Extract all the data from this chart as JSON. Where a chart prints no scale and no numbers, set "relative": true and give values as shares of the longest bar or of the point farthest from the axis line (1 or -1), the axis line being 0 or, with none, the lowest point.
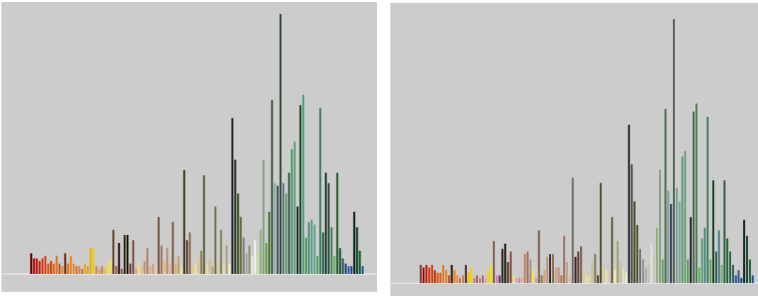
{
  "chart_data": [
    {
      "type": "bar",
      "relative": true,
      "categories": [
        null,
        null,
        null,
        null,
        null,
        null,
        null,
        null,
        null,
        null,
        null,
        null,
        null,
        null,
        null,
        null,
        null,
        null,
        null,
        null,
        null,
        null,
        null,
        null,
        null,
        null,
        null,
        null,
        null,
        null,
        null,
        null,
        null,
        null,
        null,
        null,
        null,
        null,
        null,
        null,
        null,
        null,
        null,
        null,
        null,
        null,
        null,
        null,
        null,
        null,
        null,
        null,
        null,
        null,
        null,
        null,
        null,
        null,
        null,
        null,
        null,
        null,
        null,
        null,
        null,
        null,
        null,
        null,
        null,
        null,
        null,
        null,
        null,
        null,
        null,
        null,
        null,
        null,
        null,
        null,
        null,
        null,
        null,
        null,
        null,
        null,
        null,
        null,
        null,
        null,
        null,
        null,
        null,
        null,
        null,
        null,
        null,
        null,
        null,
        null,
        null,
        null,
        null,
        null,
        null,
        null,
        null,
        null,
        null,
        null,
        null,
        null,
        null,
        null,
        null,
        null,
        null,
        null
      ],
      "values": [
        0.08,
        0.06,
        0.06,
        0.05,
        0.06,
        0.07,
        0.04,
        0.05,
        0.04,
        0.07,
        0.04,
        0.03,
        0.08,
        0.04,
        0.07,
        0.04,
        0.03,
        0.03,
        0.02,
        0.04,
        0.03,
        0.1,
        0.1,
        0.03,
        0.02,
        0.03,
        0.02,
        0.04,
        0.06,
        0.17,
        0.03,
        0.12,
        0.02,
        0.15,
        0.15,
        0.04,
        0.13,
        0.02,
        0.04,
        0.03,
        0.05,
        0.1,
        0.03,
        0.04,
        0.02,
        0.22,
        0.11,
        0.05,
        0.1,
        0.04,
        0.2,
        0.04,
        0.07,
        0.03,
        0.4,
        0.13,
        0.16,
        0.03,
        0.04,
        0.06,
        0.09,
        0.38,
        0.04,
        0.06,
        0.03,
        0.26,
        0.05,
        0.17,
        0.04,
        0.11,
        0.04,
        0.6,
        0.44,
        0.31,
        0.22,
        0.14,
        0.08,
        0.11,
        0.07,
        0.13,
        0.09,
        0.17,
        0.44,
        0.12,
        0.24,
        0.67,
        0.35,
        0.34,
        1.0,
        0.35,
        0.31,
        0.39,
        0.48,
        0.51,
        0.26,
        0.65,
        0.69,
        0.14,
        0.2,
        0.21,
        0.19,
        0.07,
        0.64,
        0.16,
        0.39,
        0.35,
        0.18,
        0.07,
        0.39,
        0.1,
        0.06,
        0.04,
        0.03,
        0.03,
        0.24,
        0.18,
        0.09,
        0.03
      ],
      "colors": [
        "#5a0000",
        "#b00000",
        "#c01010",
        "#c02000",
        "#d03010",
        "#d84010",
        "#e05010",
        "#c04010",
        "#e06010",
        "#e07010",
        "#c05020",
        "#e08030",
        "#603010",
        "#e07020",
        "#f08020",
        "#e09030",
        "#d07030",
        "#e08040",
        "#c07040",
        "#f0a020",
        "#e0a040",
        "#e8b000",
        "#f0d000",
        "#c09050",
        "#e0a060",
        "#d08060",
        "#e0c040",
        "#f0e020",
        "#f0e060",
        "#604020",
        "#a06040",
        "#301020",
        "#806060",
        "#302010",
        "#101000",
        "#604030",
        "#805040",
        "#e0a080",
        "#f0e070",
        "#e0c090",
        "#c09070",
        "#b08060",
        "#e0b080",
        "#d0a080",
        "#f0d090",
        "#705040",
        "#a07060",
        "#e0c070",
        "#c09070",
        "#e0b090",
        "#806050",
        "#d0b070",
        "#c0a060",
        "#f0e090",
        "#404020",
        "#604040",
        "#907050",
        "#e0d080",
        "#f0e0a0",
        "#e0c0a0",
        "#908050",
        "#606040",
        "#e0e0a0",
        "#d0c090",
        "#b0a070",
        "#707050",
        "#d0d0a0",
        "#808060",
        "#e0e0b0",
        "#b0a080",
        "#f0f0c0",
        "#202020",
        "#303030",
        "#305010",
        "#607040",
        "#808080",
        "#a0a0a0",
        "#909060",
        "#e4e4e4",
        "#f0f0f0",
        "#c0e0a0",
        "#90b080",
        "#80a080",
        "#60a040",
        "#507030",
        "#406040",
        "#90b0b0",
        "#405050",
        "#304830",
        "#607090",
        "#60a060",
        "#406060",
        "#50a060",
        "#60a080",
        "#202030",
        "#204020",
        "#50a080",
        "#50a050",
        "#509090",
        "#60a080",
        "#60a090",
        "#50a050",
        "#408060",
        "#306050",
        "#204030",
        "#305040",
        "#408060",
        "#60b060",
        "#206030",
        "#205040",
        "#306050",
        "#204080",
        "#3050a0",
        "#2040a0",
        "#102020",
        "#104020",
        "#106030",
        "#2050a0"
      ]
    },
    {
      "type": "bar",
      "relative": true,
      "categories": [
        null,
        null,
        null,
        null,
        null,
        null,
        null,
        null,
        null,
        null,
        null,
        null,
        null,
        null,
        null,
        null,
        null,
        null,
        null,
        null,
        null,
        null,
        null,
        null,
        null,
        null,
        null,
        null,
        null,
        null,
        null,
        null,
        null,
        null,
        null,
        null,
        null,
        null,
        null,
        null,
        null,
        null,
        null,
        null,
        null,
        null,
        null,
        null,
        null,
        null,
        null,
        null,
        null,
        null,
        null,
        null,
        null,
        null,
        null,
        null,
        null,
        null,
        null,
        null,
        null,
        null,
        null,
        null,
        null,
        null,
        null,
        null,
        null,
        null,
        null,
        null,
        null,
        null,
        null,
        null,
        null,
        null,
        null,
        null,
        null,
        null,
        null,
        null,
        null,
        null,
        null,
        null,
        null,
        null,
        null,
        null,
        null,
        null,
        null,
        null,
        null,
        null,
        null,
        null,
        null,
        null,
        null,
        null,
        null,
        null,
        null,
        null,
        null,
        null,
        null,
        null,
        null,
        null,
        null
      ],
      "values": [
        0.07,
        0.06,
        0.07,
        0.06,
        0.07,
        0.05,
        0.04,
        0.04,
        0.07,
        0.05,
        0.03,
        0.07,
        0.05,
        0.03,
        0.02,
        0.03,
        0.07,
        0.04,
        0.06,
        0.02,
        0.03,
        0.02,
        0.03,
        0.02,
        0.05,
        0.07,
        0.16,
        0.03,
        0.03,
        0.13,
        0.15,
        0.08,
        0.12,
        0.03,
        0.02,
        0.02,
        0.02,
        0.11,
        0.12,
        0.09,
        0.05,
        0.02,
        0.2,
        0.03,
        0.05,
        0.1,
        0.11,
        0.11,
        0.06,
        0.06,
        0.03,
        0.18,
        0.08,
        0.03,
        0.4,
        0.1,
        0.12,
        0.14,
        0.05,
        0.03,
        0.03,
        0.08,
        0.11,
        0.03,
        0.38,
        0.07,
        0.05,
        0.04,
        0.25,
        0.05,
        0.16,
        0.08,
        0.06,
        0.04,
        0.6,
        0.45,
        0.31,
        0.22,
        0.13,
        0.09,
        0.06,
        0.07,
        0.15,
        0.11,
        0.21,
        0.43,
        0.09,
        0.66,
        0.35,
        0.3,
        1.0,
        0.36,
        0.31,
        0.48,
        0.5,
        0.09,
        0.25,
        0.65,
        0.68,
        0.06,
        0.17,
        0.21,
        0.63,
        0.09,
        0.39,
        0.12,
        0.2,
        0.07,
        0.39,
        0.17,
        0.12,
        0.07,
        0.03,
        0.05,
        0.02,
        0.24,
        0.18,
        0.09,
        0.03
      ],
      "colors": [
        "#704040",
        "#a00000",
        "#c01000",
        "#d03010",
        "#d04010",
        "#c03010",
        "#e05010",
        "#d06020",
        "#f07010",
        "#e08020",
        "#c05030",
        "#302010",
        "#f08010",
        "#e09040",
        "#c07040",
        "#d08040",
        "#503030",
        "#f0c000",
        "#f0d000",
        "#c08060",
        "#a06060",
        "#d070a0",
        "#a07070",
        "#e0a090",
        "#f0d020",
        "#f0e020",
        "#806050",
        "#d080a0",
        "#603060",
        "#302030",
        "#202010",
        "#504020",
        "#805040",
        "#f0e060",
        "#e0a0c0",
        "#c090a0",
        "#e0b080",
        "#c08070",
        "#a07060",
        "#b09080",
        "#f0f040",
        "#d090b0",
        "#806050",
        "#808040",
        "#d0a080",
        "#c09070",
        "#402030",
        "#807040",
        "#d0a090",
        "#c09080",
        "#a08040",
        "#a07060",
        "#c0a080",
        "#e0c080",
        "#707060",
        "#402030",
        "#604040",
        "#806050",
        "#e0d0a0",
        "#f0e090",
        "#e0e0a0",
        "#c0c0a0",
        "#808050",
        "#604040",
        "#505030",
        "#d0d0a0",
        "#f0e0a0",
        "#e0c0c0",
        "#606040",
        "#f0f0b0",
        "#a0a070",
        "#c0c0a0",
        "#e0e0c0",
        "#f0f0c0",
        "#303030",
        "#505050",
        "#405020",
        "#505030",
        "#707070",
        "#909090",
        "#b0b0a0",
        "#c0c0c0",
        "#e0e0e0",
        "#c0d0b0",
        "#90b080",
        "#80a080",
        "#70a060",
        "#507050",
        "#80a0a0",
        "#404060",
        "#506050",
        "#70a090",
        "#80a0a0",
        "#60a070",
        "#70a080",
        "#60a060",
        "#202030",
        "#506050",
        "#408050",
        "#60b060",
        "#60a080",
        "#509080",
        "#408060",
        "#60a060",
        "#104020",
        "#306050",
        "#508080",
        "#70b070",
        "#306040",
        "#206030",
        "#206050",
        "#306050",
        "#3050a0",
        "#306080",
        "#2040a0",
        "#102020",
        "#104020",
        "#106030",
        "#2050a0"
      ]
    }
  ]
}
